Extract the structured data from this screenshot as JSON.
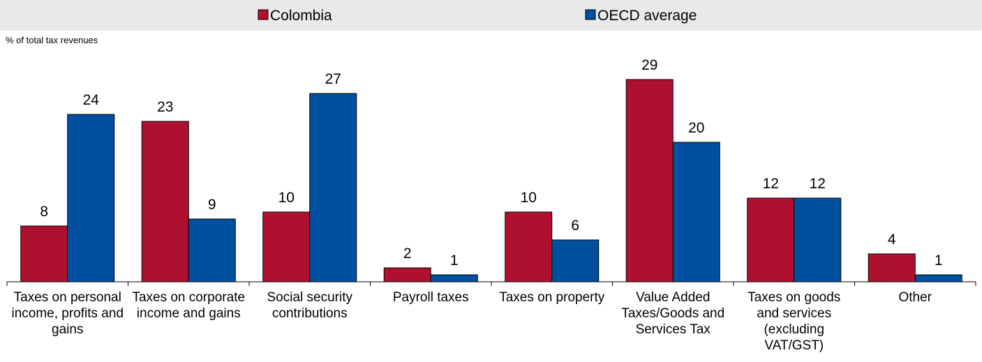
{
  "chart_data": {
    "type": "bar",
    "unit_label": "% of total tax revenues",
    "categories": [
      [
        "Taxes on personal",
        "income, profits and",
        "gains"
      ],
      [
        "Taxes on corporate",
        "income and gains"
      ],
      [
        "Social security",
        "contributions"
      ],
      [
        "Payroll taxes"
      ],
      [
        "Taxes on property"
      ],
      [
        "Value Added",
        "Taxes/Goods and",
        "Services Tax"
      ],
      [
        "Taxes on goods",
        "and services",
        "(excluding",
        "VAT/GST)"
      ],
      [
        "Other"
      ]
    ],
    "series": [
      {
        "name": "Colombia",
        "color": "#b01030",
        "values": [
          8,
          23,
          10,
          2,
          10,
          29,
          12,
          4
        ]
      },
      {
        "name": "OECD average",
        "color": "#0050a0",
        "values": [
          24,
          9,
          27,
          1,
          6,
          20,
          12,
          1
        ]
      }
    ],
    "ylim": [
      0,
      29
    ],
    "legend_position": "top-center",
    "grid": false
  }
}
